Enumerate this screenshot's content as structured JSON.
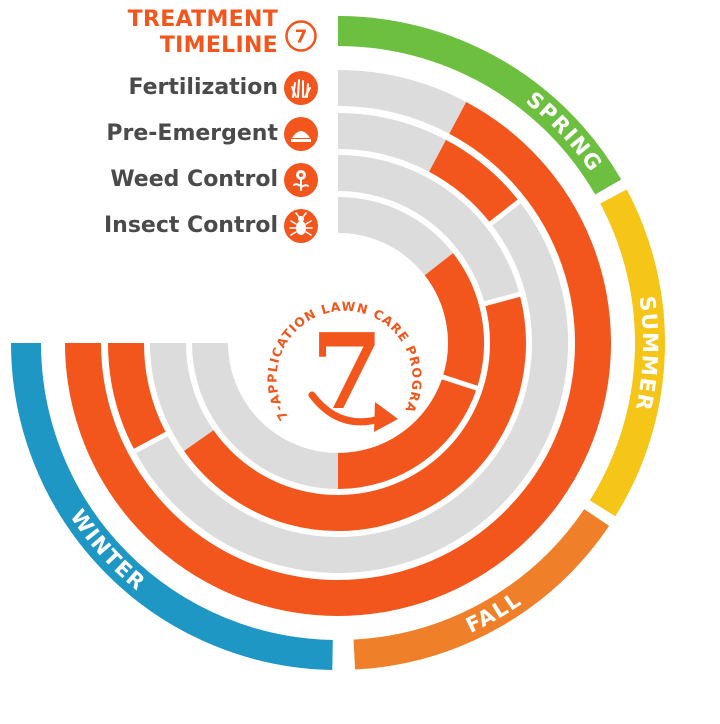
{
  "legend": {
    "title_line1": "TREATMENT",
    "title_line2": "TIMELINE",
    "title_badge": "7",
    "items": [
      {
        "label": "Fertilization",
        "icon": "grass-icon"
      },
      {
        "label": "Pre-Emergent",
        "icon": "dome-icon"
      },
      {
        "label": "Weed Control",
        "icon": "flower-icon"
      },
      {
        "label": "Insect Control",
        "icon": "insect-icon"
      }
    ]
  },
  "seasons": [
    {
      "label": "SPRING",
      "color": "#6cbf3f"
    },
    {
      "label": "SUMMER",
      "color": "#f5c518"
    },
    {
      "label": "FALL",
      "color": "#f07f2a"
    },
    {
      "label": "WINTER",
      "color": "#1f97c5"
    }
  ],
  "center": {
    "ring_text": "7-APPLICATION LAWN CARE PROGRAM",
    "number": "7"
  },
  "colors": {
    "active": "#f2561d",
    "inactive": "#dcdcdc",
    "label_gray": "#4a4a4a"
  }
}
